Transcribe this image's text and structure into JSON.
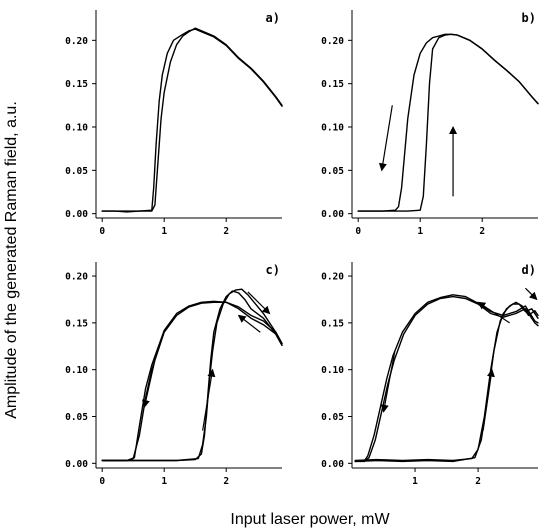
{
  "figure": {
    "ylabel": "Amplitude of the generated Raman field, a.u.",
    "xlabel": "Input laser power, mW"
  },
  "chart_data": [
    {
      "type": "line",
      "panel": "a)",
      "xticks": [
        "0",
        "1",
        "2"
      ],
      "yticks": [
        "0.00",
        "0.05",
        "0.10",
        "0.15",
        "0.20"
      ],
      "xlim": [
        -0.1,
        2.9
      ],
      "ylim": [
        -0.005,
        0.235
      ],
      "series": [
        {
          "x": [
            0.0,
            0.2,
            0.4,
            0.6,
            0.8,
            0.85,
            0.9,
            0.95,
            1.0,
            1.1,
            1.2,
            1.3,
            1.4,
            1.5,
            1.6,
            1.8,
            2.0,
            2.2,
            2.4,
            2.6,
            2.8,
            2.9
          ],
          "y": [
            0.003,
            0.003,
            0.002,
            0.003,
            0.003,
            0.01,
            0.06,
            0.11,
            0.14,
            0.175,
            0.195,
            0.205,
            0.21,
            0.214,
            0.211,
            0.205,
            0.195,
            0.18,
            0.168,
            0.153,
            0.135,
            0.125
          ]
        },
        {
          "x": [
            0.0,
            0.2,
            0.4,
            0.6,
            0.8,
            0.83,
            0.87,
            0.92,
            0.97,
            1.05,
            1.15,
            1.3,
            1.4,
            1.5,
            1.6,
            1.8,
            2.0,
            2.2,
            2.4,
            2.6,
            2.8,
            2.9
          ],
          "y": [
            0.003,
            0.003,
            0.003,
            0.003,
            0.004,
            0.03,
            0.08,
            0.13,
            0.16,
            0.185,
            0.2,
            0.207,
            0.211,
            0.213,
            0.21,
            0.204,
            0.194,
            0.179,
            0.167,
            0.152,
            0.134,
            0.124
          ]
        }
      ],
      "arrows": []
    },
    {
      "type": "line",
      "panel": "b)",
      "xticks": [
        "0",
        "1",
        "2"
      ],
      "yticks": [
        "0.00",
        "0.05",
        "0.10",
        "0.15",
        "0.20"
      ],
      "xlim": [
        -0.1,
        2.9
      ],
      "ylim": [
        -0.005,
        0.235
      ],
      "series": [
        {
          "x": [
            0.0,
            0.2,
            0.4,
            0.6,
            0.65,
            0.7,
            0.75,
            0.8,
            0.9,
            1.0,
            1.1,
            1.2,
            1.3,
            1.4,
            1.5,
            1.6,
            1.8,
            2.0,
            2.2,
            2.4,
            2.6,
            2.8,
            2.9
          ],
          "y": [
            0.003,
            0.003,
            0.003,
            0.004,
            0.008,
            0.03,
            0.07,
            0.11,
            0.16,
            0.185,
            0.197,
            0.203,
            0.205,
            0.207,
            0.207,
            0.206,
            0.2,
            0.19,
            0.177,
            0.165,
            0.152,
            0.135,
            0.127
          ]
        },
        {
          "x": [
            0.0,
            0.2,
            0.4,
            0.6,
            0.8,
            1.0,
            1.05,
            1.1,
            1.15,
            1.2,
            1.3,
            1.4,
            1.5,
            1.6,
            1.8,
            2.0,
            2.2,
            2.4,
            2.6,
            2.8,
            2.9
          ],
          "y": [
            0.003,
            0.003,
            0.003,
            0.003,
            0.003,
            0.004,
            0.02,
            0.08,
            0.15,
            0.19,
            0.203,
            0.206,
            0.207,
            0.206,
            0.2,
            0.19,
            0.177,
            0.165,
            0.152,
            0.135,
            0.127
          ]
        }
      ],
      "arrows": [
        {
          "x1": 0.55,
          "y1": 0.125,
          "x2": 0.38,
          "y2": 0.05
        },
        {
          "x1": 1.53,
          "y1": 0.02,
          "x2": 1.53,
          "y2": 0.1
        }
      ]
    },
    {
      "type": "line",
      "panel": "c)",
      "xticks": [
        "0",
        "1",
        "2"
      ],
      "yticks": [
        "0.00",
        "0.05",
        "0.10",
        "0.15",
        "0.20"
      ],
      "xlim": [
        -0.1,
        2.9
      ],
      "ylim": [
        -0.005,
        0.215
      ],
      "series": [
        {
          "x": [
            0.0,
            0.2,
            0.4,
            0.5,
            0.6,
            0.7,
            0.8,
            1.0,
            1.2,
            1.4,
            1.6,
            1.8,
            2.0,
            2.2,
            2.4,
            2.6,
            2.8,
            2.9
          ],
          "y": [
            0.003,
            0.003,
            0.003,
            0.005,
            0.03,
            0.07,
            0.1,
            0.14,
            0.158,
            0.167,
            0.171,
            0.172,
            0.172,
            0.167,
            0.158,
            0.152,
            0.14,
            0.128
          ]
        },
        {
          "x": [
            0.0,
            0.2,
            0.4,
            0.52,
            0.6,
            0.7,
            0.8,
            1.0,
            1.2,
            1.4,
            1.6,
            1.8,
            2.0,
            2.2,
            2.4,
            2.6,
            2.8,
            2.9
          ],
          "y": [
            0.003,
            0.003,
            0.003,
            0.006,
            0.04,
            0.08,
            0.105,
            0.142,
            0.16,
            0.168,
            0.172,
            0.173,
            0.172,
            0.165,
            0.155,
            0.148,
            0.138,
            0.126
          ]
        },
        {
          "x": [
            0.0,
            0.4,
            0.8,
            1.2,
            1.5,
            1.6,
            1.65,
            1.7,
            1.75,
            1.8,
            1.9,
            2.0,
            2.1,
            2.2,
            2.3,
            2.4,
            2.6,
            2.8,
            2.9
          ],
          "y": [
            0.003,
            0.003,
            0.003,
            0.003,
            0.004,
            0.01,
            0.03,
            0.07,
            0.11,
            0.14,
            0.165,
            0.178,
            0.184,
            0.182,
            0.175,
            0.165,
            0.155,
            0.138,
            0.126
          ]
        },
        {
          "x": [
            0.0,
            0.4,
            0.8,
            1.2,
            1.55,
            1.62,
            1.68,
            1.73,
            1.78,
            1.85,
            1.95,
            2.05,
            2.15,
            2.25,
            2.35,
            2.45,
            2.6,
            2.8,
            2.9
          ],
          "y": [
            0.003,
            0.003,
            0.003,
            0.003,
            0.005,
            0.02,
            0.05,
            0.09,
            0.12,
            0.15,
            0.17,
            0.181,
            0.185,
            0.186,
            0.18,
            0.172,
            0.16,
            0.14,
            0.128
          ]
        }
      ],
      "arrows": [
        {
          "x1": 0.85,
          "y1": 0.11,
          "x2": 0.68,
          "y2": 0.06
        },
        {
          "x1": 1.62,
          "y1": 0.035,
          "x2": 1.78,
          "y2": 0.1
        },
        {
          "x1": 2.55,
          "y1": 0.14,
          "x2": 2.2,
          "y2": 0.158
        },
        {
          "x1": 2.35,
          "y1": 0.183,
          "x2": 2.7,
          "y2": 0.16
        }
      ]
    },
    {
      "type": "line",
      "panel": "d)",
      "xticks": [
        "1",
        "2"
      ],
      "yticks": [
        "0.00",
        "0.05",
        "0.10",
        "0.15",
        "0.20"
      ],
      "xlim": [
        0.0,
        2.95
      ],
      "ylim": [
        -0.005,
        0.215
      ],
      "series": [
        {
          "x": [
            0.05,
            0.2,
            0.25,
            0.35,
            0.45,
            0.55,
            0.65,
            0.8,
            1.0,
            1.2,
            1.4,
            1.6,
            1.8,
            2.0,
            2.2,
            2.4,
            2.6,
            2.75,
            2.9,
            2.95
          ],
          "y": [
            0.002,
            0.003,
            0.008,
            0.03,
            0.06,
            0.09,
            0.115,
            0.14,
            0.16,
            0.172,
            0.177,
            0.18,
            0.178,
            0.171,
            0.162,
            0.158,
            0.162,
            0.168,
            0.152,
            0.15
          ]
        },
        {
          "x": [
            0.05,
            0.2,
            0.27,
            0.37,
            0.47,
            0.57,
            0.67,
            0.82,
            1.0,
            1.2,
            1.4,
            1.6,
            1.8,
            2.0,
            2.2,
            2.4,
            2.6,
            2.75,
            2.9,
            2.95
          ],
          "y": [
            0.002,
            0.002,
            0.006,
            0.025,
            0.055,
            0.085,
            0.11,
            0.138,
            0.158,
            0.17,
            0.176,
            0.178,
            0.176,
            0.17,
            0.16,
            0.156,
            0.16,
            0.165,
            0.15,
            0.147
          ]
        },
        {
          "x": [
            0.05,
            0.4,
            0.8,
            1.2,
            1.6,
            1.9,
            2.0,
            2.1,
            2.2,
            2.3,
            2.4,
            2.5,
            2.6,
            2.7,
            2.8,
            2.9,
            2.95
          ],
          "y": [
            0.003,
            0.004,
            0.003,
            0.004,
            0.003,
            0.005,
            0.015,
            0.05,
            0.1,
            0.14,
            0.16,
            0.168,
            0.172,
            0.168,
            0.158,
            0.163,
            0.158
          ]
        },
        {
          "x": [
            0.05,
            0.4,
            0.8,
            1.2,
            1.6,
            1.95,
            2.05,
            2.15,
            2.25,
            2.35,
            2.45,
            2.55,
            2.65,
            2.75,
            2.85,
            2.95
          ],
          "y": [
            0.002,
            0.003,
            0.002,
            0.003,
            0.002,
            0.006,
            0.025,
            0.07,
            0.12,
            0.152,
            0.165,
            0.17,
            0.17,
            0.162,
            0.165,
            0.155
          ]
        }
      ],
      "arrows": [
        {
          "x1": 0.68,
          "y1": 0.12,
          "x2": 0.5,
          "y2": 0.055
        },
        {
          "x1": 2.08,
          "y1": 0.035,
          "x2": 2.22,
          "y2": 0.1
        },
        {
          "x1": 2.5,
          "y1": 0.15,
          "x2": 2.0,
          "y2": 0.172
        },
        {
          "x1": 2.75,
          "y1": 0.187,
          "x2": 2.93,
          "y2": 0.175
        }
      ]
    }
  ]
}
